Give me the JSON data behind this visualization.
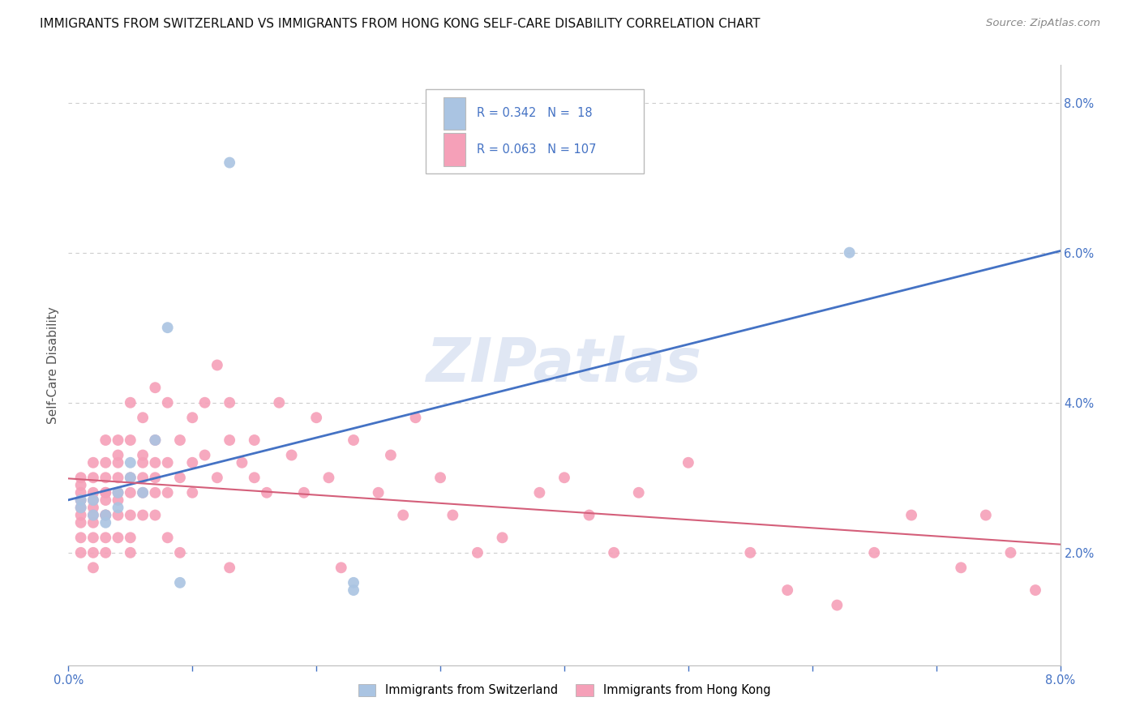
{
  "title": "IMMIGRANTS FROM SWITZERLAND VS IMMIGRANTS FROM HONG KONG SELF-CARE DISABILITY CORRELATION CHART",
  "source": "Source: ZipAtlas.com",
  "ylabel": "Self-Care Disability",
  "xmin": 0.0,
  "xmax": 0.08,
  "ymin": 0.005,
  "ymax": 0.085,
  "legend_R_swiss": "0.342",
  "legend_N_swiss": "18",
  "legend_R_hk": "0.063",
  "legend_N_hk": "107",
  "swiss_color": "#aac4e2",
  "hk_color": "#f5a0b8",
  "line_swiss_color": "#4472c4",
  "line_hk_color": "#d45f7a",
  "swiss_x": [
    0.001,
    0.001,
    0.002,
    0.002,
    0.003,
    0.003,
    0.004,
    0.004,
    0.005,
    0.005,
    0.006,
    0.007,
    0.008,
    0.009,
    0.013,
    0.023,
    0.023,
    0.063
  ],
  "swiss_y": [
    0.027,
    0.026,
    0.025,
    0.027,
    0.025,
    0.024,
    0.028,
    0.026,
    0.032,
    0.03,
    0.028,
    0.035,
    0.05,
    0.016,
    0.072,
    0.016,
    0.015,
    0.06
  ],
  "hk_x": [
    0.001,
    0.001,
    0.001,
    0.001,
    0.001,
    0.001,
    0.001,
    0.001,
    0.001,
    0.002,
    0.002,
    0.002,
    0.002,
    0.002,
    0.002,
    0.002,
    0.002,
    0.002,
    0.002,
    0.003,
    0.003,
    0.003,
    0.003,
    0.003,
    0.003,
    0.003,
    0.003,
    0.003,
    0.003,
    0.004,
    0.004,
    0.004,
    0.004,
    0.004,
    0.004,
    0.004,
    0.004,
    0.005,
    0.005,
    0.005,
    0.005,
    0.005,
    0.005,
    0.005,
    0.006,
    0.006,
    0.006,
    0.006,
    0.006,
    0.006,
    0.007,
    0.007,
    0.007,
    0.007,
    0.007,
    0.007,
    0.008,
    0.008,
    0.008,
    0.008,
    0.009,
    0.009,
    0.009,
    0.01,
    0.01,
    0.01,
    0.011,
    0.011,
    0.012,
    0.012,
    0.013,
    0.013,
    0.013,
    0.014,
    0.015,
    0.015,
    0.016,
    0.017,
    0.018,
    0.019,
    0.02,
    0.021,
    0.022,
    0.023,
    0.025,
    0.026,
    0.027,
    0.028,
    0.03,
    0.031,
    0.033,
    0.035,
    0.038,
    0.04,
    0.042,
    0.044,
    0.046,
    0.05,
    0.055,
    0.058,
    0.062,
    0.065,
    0.068,
    0.072,
    0.074,
    0.076,
    0.078
  ],
  "hk_y": [
    0.027,
    0.025,
    0.026,
    0.028,
    0.029,
    0.03,
    0.022,
    0.024,
    0.02,
    0.025,
    0.027,
    0.026,
    0.024,
    0.03,
    0.028,
    0.032,
    0.022,
    0.02,
    0.018,
    0.028,
    0.027,
    0.025,
    0.03,
    0.028,
    0.032,
    0.035,
    0.025,
    0.022,
    0.02,
    0.027,
    0.03,
    0.028,
    0.032,
    0.035,
    0.033,
    0.025,
    0.022,
    0.025,
    0.03,
    0.028,
    0.035,
    0.04,
    0.022,
    0.02,
    0.028,
    0.032,
    0.03,
    0.033,
    0.038,
    0.025,
    0.032,
    0.035,
    0.03,
    0.028,
    0.042,
    0.025,
    0.028,
    0.032,
    0.04,
    0.022,
    0.03,
    0.035,
    0.02,
    0.032,
    0.038,
    0.028,
    0.033,
    0.04,
    0.03,
    0.045,
    0.035,
    0.04,
    0.018,
    0.032,
    0.035,
    0.03,
    0.028,
    0.04,
    0.033,
    0.028,
    0.038,
    0.03,
    0.018,
    0.035,
    0.028,
    0.033,
    0.025,
    0.038,
    0.03,
    0.025,
    0.02,
    0.022,
    0.028,
    0.03,
    0.025,
    0.02,
    0.028,
    0.032,
    0.02,
    0.015,
    0.013,
    0.02,
    0.025,
    0.018,
    0.025,
    0.02,
    0.015
  ]
}
